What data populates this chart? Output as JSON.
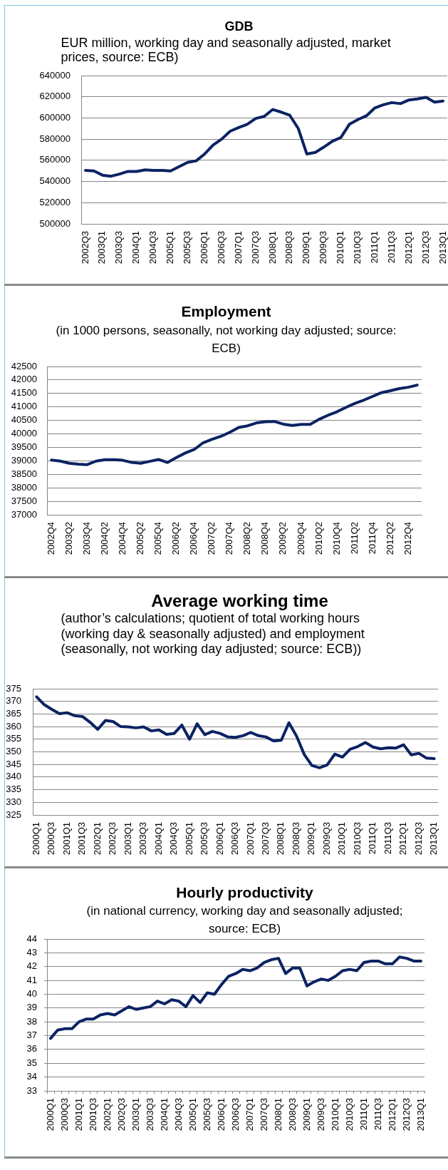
{
  "chart_data": [
    {
      "type": "line",
      "title": "GDB",
      "subtitle": "EUR million, working day and seasonally adjusted, market prices, source: ECB)",
      "categories": [
        "2002Q3",
        null,
        "2003Q1",
        null,
        "2003Q3",
        null,
        "2004Q1",
        null,
        "2004Q3",
        null,
        "2005Q1",
        null,
        "2005Q3",
        null,
        "2006Q1",
        null,
        "2006Q3",
        null,
        "2007Q1",
        null,
        "2007Q3",
        null,
        "2008Q1",
        null,
        "2008Q3",
        null,
        "2009Q1",
        null,
        "2009Q3",
        null,
        "2010Q1",
        null,
        "2010Q3",
        null,
        "2011Q1",
        null,
        "2011Q3",
        null,
        "2012Q1",
        null,
        "2012Q3",
        null,
        "2013Q1"
      ],
      "values": [
        550500,
        550000,
        546000,
        545000,
        547000,
        549500,
        549500,
        551000,
        550500,
        550500,
        550000,
        554000,
        558000,
        559500,
        566000,
        574500,
        580000,
        587500,
        591000,
        594000,
        599500,
        601500,
        608000,
        605500,
        602500,
        590000,
        566000,
        567500,
        572500,
        578000,
        581500,
        594000,
        598500,
        602000,
        609500,
        612500,
        614500,
        613500,
        617000,
        618000,
        619500,
        615000,
        616000
      ],
      "color": "#0b2362",
      "ylim": [
        500000,
        640000
      ],
      "yticks": [
        500000,
        520000,
        540000,
        560000,
        580000,
        600000,
        620000,
        640000
      ],
      "grid": "y"
    },
    {
      "type": "line",
      "title": "Employment",
      "subtitle": "(in 1000 persons, seasonally, not working day adjusted; source: ECB)",
      "categories": [
        "2002Q4",
        null,
        "2003Q2",
        null,
        "2003Q4",
        null,
        "2004Q2",
        null,
        "2004Q4",
        null,
        "2005Q2",
        null,
        "2005Q4",
        null,
        "2006Q2",
        null,
        "2006Q4",
        null,
        "2007Q2",
        null,
        "2007Q4",
        null,
        "2008Q2",
        null,
        "2008Q4",
        null,
        "2009Q2",
        null,
        "2009Q4",
        null,
        "2010Q2",
        null,
        "2010Q4",
        null,
        "2011Q2",
        null,
        "2011Q4",
        null,
        "2012Q2",
        null,
        "2012Q4",
        null
      ],
      "values": [
        39030,
        38990,
        38910,
        38880,
        38860,
        38990,
        39040,
        39040,
        39020,
        38940,
        38910,
        38980,
        39050,
        38940,
        39120,
        39290,
        39420,
        39670,
        39800,
        39910,
        40060,
        40240,
        40300,
        40410,
        40450,
        40460,
        40360,
        40310,
        40350,
        40350,
        40540,
        40690,
        40820,
        40980,
        41130,
        41250,
        41390,
        41530,
        41600,
        41680,
        41730,
        41810
      ],
      "color": "#0b2362",
      "ylim": [
        37000,
        42500
      ],
      "yticks": [
        37000,
        37500,
        38000,
        38500,
        39000,
        39500,
        40000,
        40500,
        41000,
        41500,
        42000,
        42500
      ],
      "grid": "y"
    },
    {
      "type": "line",
      "title": "Average working time",
      "subtitle": "(author’s calculations; quotient of total working hours (working day & seasonally adjusted) and employment (seasonally, not working day adjusted; source: ECB))",
      "categories": [
        "2000Q1",
        null,
        "2000Q3",
        null,
        "2001Q1",
        null,
        "2001Q3",
        null,
        "2002Q1",
        null,
        "2002Q3",
        null,
        "2003Q1",
        null,
        "2003Q3",
        null,
        "2004Q1",
        null,
        "2004Q3",
        null,
        "2005Q1",
        null,
        "2005Q3",
        null,
        "2006Q1",
        null,
        "2006Q3",
        null,
        "2007Q1",
        null,
        "2007Q3",
        null,
        "2008Q1",
        null,
        "2008Q3",
        null,
        "2009Q1",
        null,
        "2009Q3",
        null,
        "2010Q1",
        null,
        "2010Q3",
        null,
        "2011Q1",
        null,
        "2011Q3",
        null,
        "2012Q1",
        null,
        "2012Q3",
        null,
        "2013Q1"
      ],
      "values": [
        371.8,
        368.7,
        366.8,
        365.1,
        365.5,
        364.3,
        364.0,
        361.7,
        358.9,
        362.4,
        362.0,
        360.0,
        359.9,
        359.5,
        359.9,
        358.3,
        358.7,
        356.9,
        357.3,
        360.6,
        355.0,
        361.1,
        356.8,
        358.1,
        357.3,
        355.9,
        355.7,
        356.4,
        357.7,
        356.4,
        355.9,
        354.3,
        354.6,
        361.5,
        356.2,
        349.0,
        344.6,
        343.7,
        344.8,
        349.1,
        347.9,
        351.0,
        352.1,
        353.7,
        351.9,
        351.2,
        351.6,
        351.5,
        352.8,
        348.8,
        349.4,
        347.5,
        347.3
      ],
      "color": "#0b2362",
      "ylim": [
        325,
        375
      ],
      "yticks": [
        325,
        330,
        335,
        340,
        345,
        350,
        355,
        360,
        365,
        370,
        375
      ],
      "grid": "y"
    },
    {
      "type": "line",
      "title": "Hourly productivity",
      "subtitle": "(in national currency, working day and seasonally adjusted; source: ECB)",
      "categories": [
        "2000Q1",
        null,
        "2000Q3",
        null,
        "2001Q1",
        null,
        "2001Q3",
        null,
        "2002Q1",
        null,
        "2002Q3",
        null,
        "2003Q1",
        null,
        "2003Q3",
        null,
        "2004Q1",
        null,
        "2004Q3",
        null,
        "2005Q1",
        null,
        "2005Q3",
        null,
        "2006Q1",
        null,
        "2006Q3",
        null,
        "2007Q1",
        null,
        "2007Q3",
        null,
        "2008Q1",
        null,
        "2008Q3",
        null,
        "2009Q1",
        null,
        "2009Q3",
        null,
        "2010Q1",
        null,
        "2010Q3",
        null,
        "2011Q1",
        null,
        "2011Q3",
        null,
        "2012Q1",
        null,
        "2012Q3",
        null,
        "2013Q1"
      ],
      "values": [
        36.8,
        37.4,
        37.5,
        37.5,
        38.0,
        38.2,
        38.2,
        38.5,
        38.6,
        38.5,
        38.8,
        39.1,
        38.9,
        39.0,
        39.1,
        39.5,
        39.3,
        39.6,
        39.5,
        39.1,
        39.9,
        39.4,
        40.1,
        40.0,
        40.7,
        41.3,
        41.5,
        41.8,
        41.7,
        41.9,
        42.3,
        42.5,
        42.6,
        41.5,
        41.9,
        41.9,
        40.6,
        40.9,
        41.1,
        41.0,
        41.3,
        41.7,
        41.8,
        41.7,
        42.3,
        42.4,
        42.4,
        42.2,
        42.2,
        42.7,
        42.6,
        42.4,
        42.4
      ],
      "color": "#0b2362",
      "ylim": [
        33,
        44
      ],
      "yticks": [
        33,
        34,
        35,
        36,
        37,
        38,
        39,
        40,
        41,
        42,
        43,
        44
      ],
      "grid": "y"
    }
  ]
}
